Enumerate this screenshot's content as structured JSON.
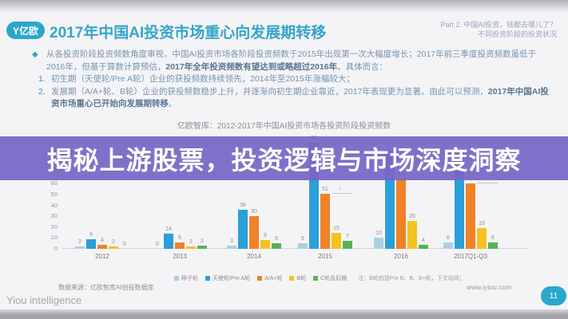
{
  "header": {
    "logo_text": "Y亿欧",
    "title": "2017年中国AI投资市场重心向发展期转移",
    "part_label_line1": "Part 2. 中国AI投资，钱都去哪儿了？",
    "part_label_line2": "不同投资阶段的投资状况"
  },
  "paragraph": {
    "bullet": "◆",
    "items": [
      {
        "segments": [
          {
            "t": "从各投资阶段投资频数角度审视，中国AI投资市场各阶段投资频数于2015年出现第一次大幅度增长；2017年前三季度投资频数虽低于2016年，但基于算数计算预估，"
          },
          {
            "t": "2017年全年投资频数有望达到或略超过2016年",
            "bold": true
          },
          {
            "t": "。具体而言："
          }
        ]
      },
      {
        "num": "1.",
        "segments": [
          {
            "t": "初生期（天使轮/Pre A轮）企业的获投频数持续领先，2014年至2015年涨幅较大；"
          }
        ]
      },
      {
        "num": "2.",
        "segments": [
          {
            "t": "发展期（A/A+轮、B轮）企业的获投频数稳步上升，并逐渐向初生期企业靠近，2017年表现更为显著。由此可以预测，"
          },
          {
            "t": "2017年中国AI投资市场重心已开始向发展期转移",
            "bold": true
          },
          {
            "t": "。"
          }
        ]
      }
    ]
  },
  "banner": {
    "text": "揭秘上游股票，投资逻辑与市场深度洞察",
    "color": "#7967c7"
  },
  "chart_data": {
    "type": "bar",
    "title": "亿欧智库：2012-2017年中国AI投资市场各投资阶段投资频数",
    "categories": [
      "2012",
      "2013",
      "2014",
      "2015",
      "2016",
      "2017Q1-Q3"
    ],
    "series": [
      {
        "name": "种子轮",
        "color": "#abcfe3",
        "values": [
          2,
          0,
          3,
          5,
          10,
          6
        ]
      },
      {
        "name": "天使轮/Pre A轮",
        "color": "#2b9fd7",
        "values": [
          9,
          14,
          36,
          98,
          91,
          71
        ]
      },
      {
        "name": "A/A+轮",
        "color": "#f08228",
        "values": [
          4,
          6,
          30,
          51,
          65,
          60
        ]
      },
      {
        "name": "B轮",
        "color": "#f4c31f",
        "values": [
          2,
          2,
          8,
          15,
          26,
          19
        ]
      },
      {
        "name": "C轮及后期",
        "color": "#57b356",
        "values": [
          0,
          3,
          5,
          7,
          4,
          6
        ]
      }
    ],
    "ylim": [
      0,
      100
    ],
    "ytick_step": 10,
    "grid": false,
    "legend_position": "bottom",
    "legend_note": "注：B轮包括Pre B、B、B+轮，下文均同；",
    "annotations": [
      {
        "category": "2015",
        "series": "A/A+轮",
        "icon": "down-arrow"
      },
      {
        "category": "2016",
        "series": "A/A+轮",
        "icon": "down-arrow"
      },
      {
        "category": "2017Q1-Q3",
        "series": "A/A+轮",
        "icon": "down-arrow"
      }
    ]
  },
  "footer": {
    "source": "数据来源：亿欧智库AI创投数据库",
    "url": "www.iyiou.com",
    "page_number": "11",
    "watermark": "Yiou intelligence"
  }
}
